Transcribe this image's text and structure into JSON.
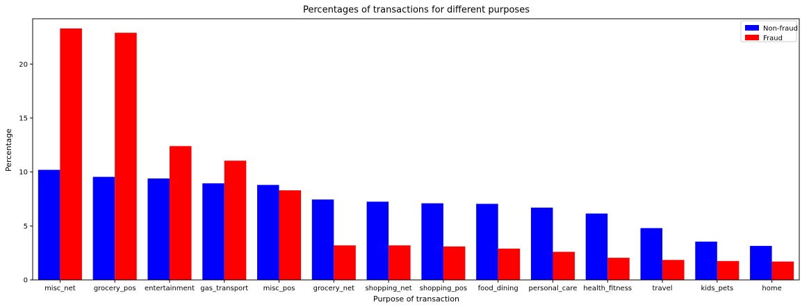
{
  "chart_data": {
    "type": "bar",
    "title": "Percentages of transactions for different purposes",
    "xlabel": "Purpose of transaction",
    "ylabel": "Percentage",
    "ylim": [
      0,
      24.2
    ],
    "yticks": [
      0,
      5,
      10,
      15,
      20
    ],
    "grid": false,
    "legend": "top-right",
    "categories": [
      "misc_net",
      "grocery_pos",
      "entertainment",
      "gas_transport",
      "misc_pos",
      "grocery_net",
      "shopping_net",
      "shopping_pos",
      "food_dining",
      "personal_care",
      "health_fitness",
      "travel",
      "kids_pets",
      "home"
    ],
    "series": [
      {
        "name": "Non-fraud",
        "color": "#0000ff",
        "values": [
          10.2,
          9.55,
          9.4,
          8.95,
          8.8,
          7.45,
          7.25,
          7.1,
          7.05,
          6.7,
          6.15,
          4.8,
          3.55,
          3.15
        ]
      },
      {
        "name": "Fraud",
        "color": "#ff0000",
        "values": [
          23.3,
          22.9,
          12.4,
          11.05,
          8.3,
          3.2,
          3.2,
          3.1,
          2.9,
          2.6,
          2.05,
          1.85,
          1.75,
          1.7
        ]
      }
    ]
  }
}
